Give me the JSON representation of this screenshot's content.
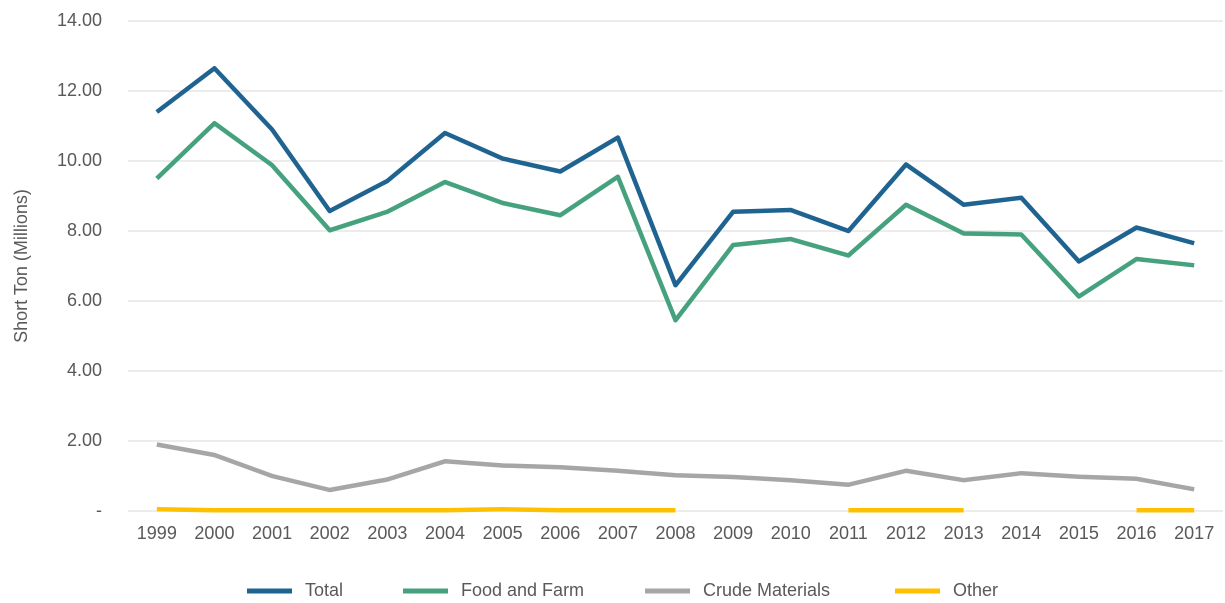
{
  "chart_data": {
    "type": "line",
    "y_label": "Short Ton (Millions)",
    "categories": [
      "1999",
      "2000",
      "2001",
      "2002",
      "2003",
      "2004",
      "2005",
      "2006",
      "2007",
      "2008",
      "2009",
      "2010",
      "2011",
      "2012",
      "2013",
      "2014",
      "2015",
      "2016",
      "2017"
    ],
    "series": [
      {
        "name": "Total",
        "color": "#1f6391",
        "values": [
          11.4,
          12.65,
          10.9,
          8.57,
          9.43,
          10.8,
          10.07,
          9.7,
          10.67,
          6.45,
          8.55,
          8.6,
          8.0,
          9.9,
          8.75,
          8.95,
          7.13,
          8.1,
          7.65
        ]
      },
      {
        "name": "Food and Farm",
        "color": "#45a17e",
        "values": [
          9.5,
          11.08,
          9.88,
          8.02,
          8.55,
          9.4,
          8.8,
          8.45,
          9.55,
          5.45,
          7.6,
          7.77,
          7.3,
          8.75,
          7.93,
          7.9,
          6.13,
          7.2,
          7.02
        ]
      },
      {
        "name": "Crude Materials",
        "color": "#a6a6a6",
        "values": [
          1.9,
          1.6,
          1.0,
          0.6,
          0.9,
          1.42,
          1.3,
          1.25,
          1.15,
          1.02,
          0.97,
          0.88,
          0.75,
          1.15,
          0.88,
          1.08,
          0.98,
          0.92,
          0.62
        ]
      },
      {
        "name": "Other",
        "color": "#ffc000",
        "values": [
          0.05,
          0.02,
          0.02,
          0.02,
          0.02,
          0.02,
          0.05,
          0.02,
          0.02,
          0.02,
          null,
          null,
          0.02,
          0.02,
          0.02,
          null,
          null,
          0.02,
          0.02
        ]
      }
    ],
    "ylim": [
      0,
      14
    ],
    "yticks": [
      {
        "value": 0,
        "label": "-"
      },
      {
        "value": 2,
        "label": "2.00"
      },
      {
        "value": 4,
        "label": "4.00"
      },
      {
        "value": 6,
        "label": "6.00"
      },
      {
        "value": 8,
        "label": "8.00"
      },
      {
        "value": 10,
        "label": "10.00"
      },
      {
        "value": 12,
        "label": "12.00"
      },
      {
        "value": 14,
        "label": "14.00"
      }
    ],
    "grid": true,
    "legend": "bottom"
  }
}
